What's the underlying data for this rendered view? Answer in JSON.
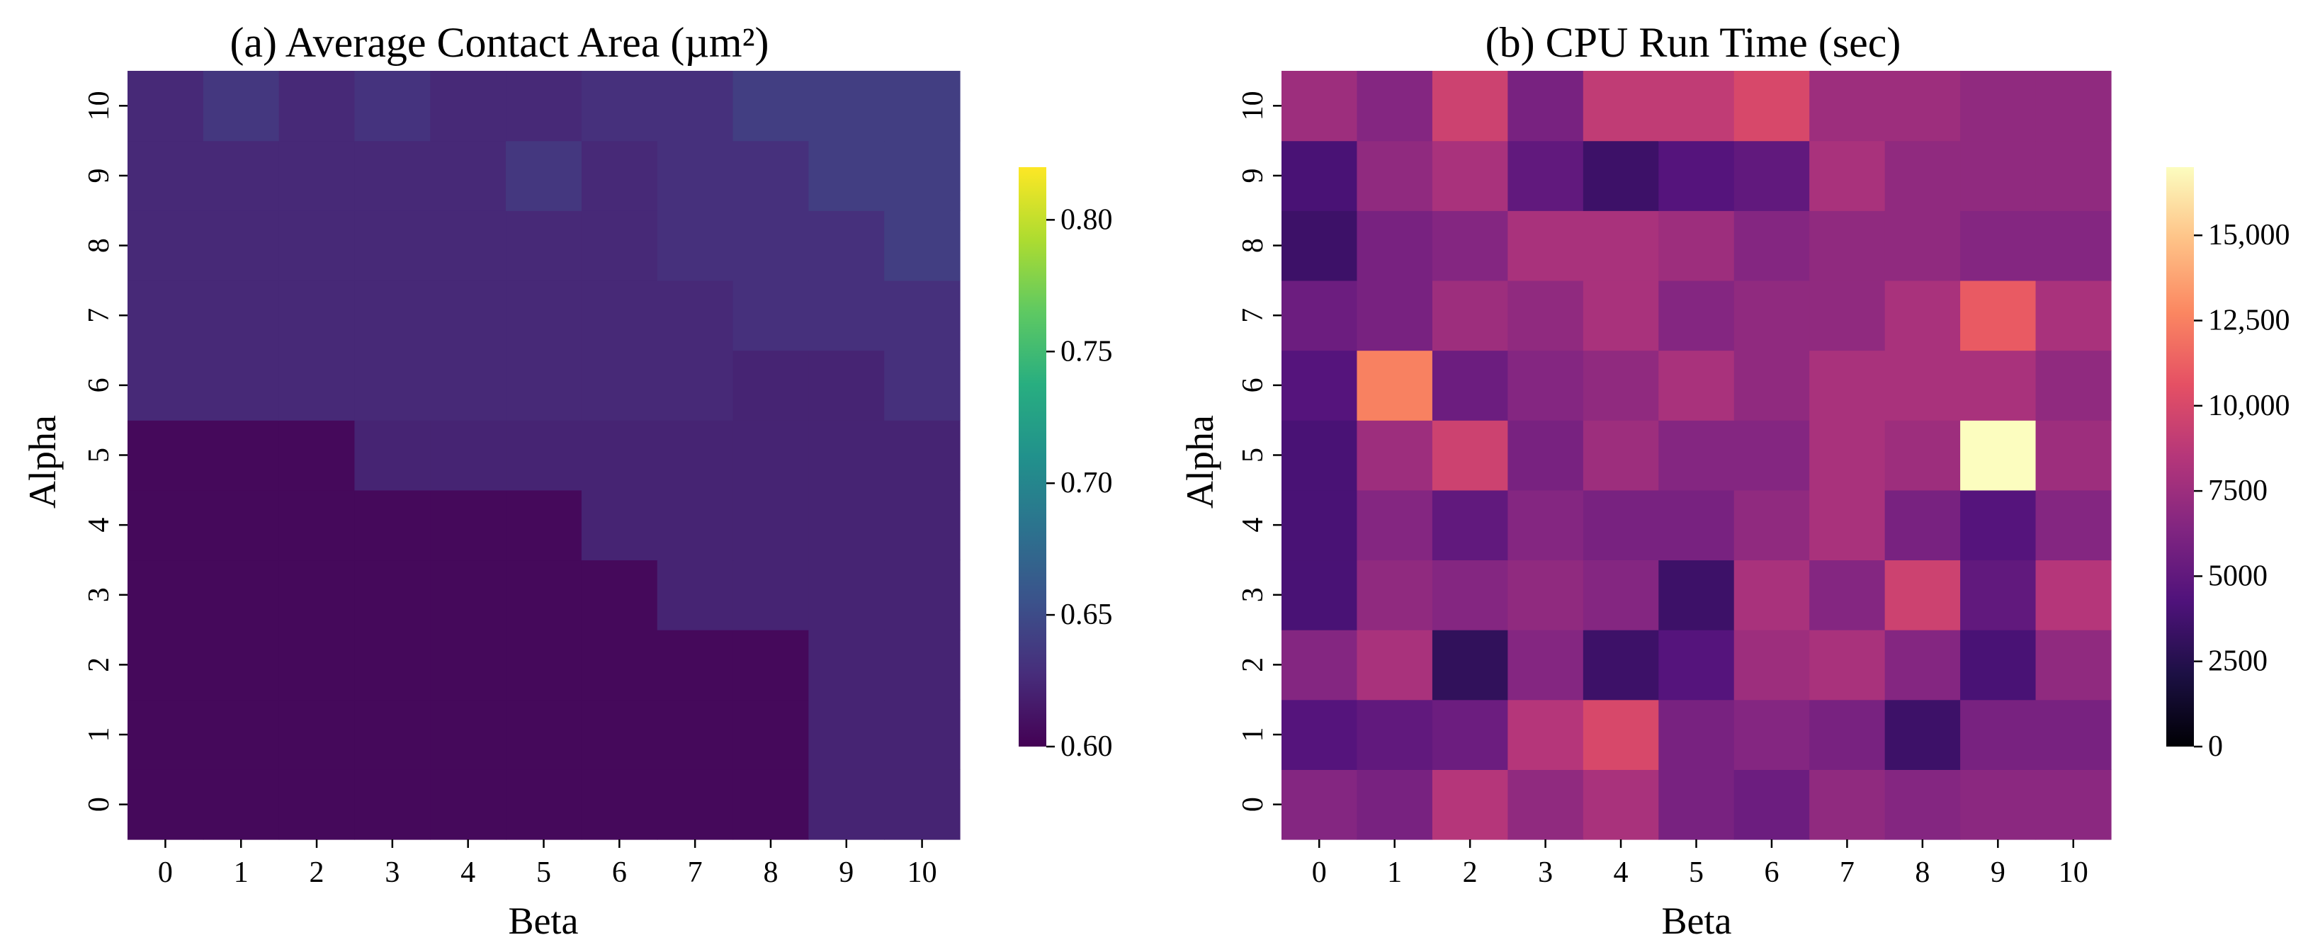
{
  "chart_data": [
    {
      "type": "heatmap",
      "title": "(a) Average Contact Area (µm²)",
      "xlabel": "Beta",
      "ylabel": "Alpha",
      "x_categories": [
        "0",
        "1",
        "2",
        "3",
        "4",
        "5",
        "6",
        "7",
        "8",
        "9",
        "10"
      ],
      "y_categories": [
        "0",
        "1",
        "2",
        "3",
        "4",
        "5",
        "6",
        "7",
        "8",
        "9",
        "10"
      ],
      "colormap": "viridis",
      "vmin": 0.6,
      "vmax": 0.82,
      "colorbar_ticks": [
        "0.60",
        "0.65",
        "0.70",
        "0.75",
        "0.80"
      ],
      "colorbar_tick_values": [
        0.6,
        0.65,
        0.7,
        0.75,
        0.8
      ],
      "values": [
        [
          0.605,
          0.605,
          0.605,
          0.605,
          0.605,
          0.605,
          0.605,
          0.605,
          0.605,
          0.622,
          0.622
        ],
        [
          0.605,
          0.605,
          0.605,
          0.605,
          0.605,
          0.605,
          0.605,
          0.605,
          0.605,
          0.622,
          0.622
        ],
        [
          0.605,
          0.605,
          0.605,
          0.605,
          0.605,
          0.605,
          0.605,
          0.605,
          0.605,
          0.622,
          0.622
        ],
        [
          0.605,
          0.605,
          0.605,
          0.605,
          0.605,
          0.605,
          0.605,
          0.622,
          0.622,
          0.622,
          0.622
        ],
        [
          0.605,
          0.605,
          0.605,
          0.605,
          0.605,
          0.605,
          0.622,
          0.622,
          0.622,
          0.622,
          0.622
        ],
        [
          0.605,
          0.605,
          0.605,
          0.622,
          0.622,
          0.622,
          0.622,
          0.622,
          0.622,
          0.622,
          0.622
        ],
        [
          0.625,
          0.625,
          0.625,
          0.625,
          0.625,
          0.625,
          0.625,
          0.625,
          0.622,
          0.622,
          0.63
        ],
        [
          0.625,
          0.625,
          0.625,
          0.625,
          0.625,
          0.625,
          0.625,
          0.625,
          0.63,
          0.63,
          0.63
        ],
        [
          0.625,
          0.625,
          0.625,
          0.625,
          0.625,
          0.625,
          0.625,
          0.63,
          0.63,
          0.63,
          0.64
        ],
        [
          0.625,
          0.625,
          0.625,
          0.625,
          0.625,
          0.635,
          0.625,
          0.63,
          0.63,
          0.64,
          0.64
        ],
        [
          0.625,
          0.635,
          0.625,
          0.632,
          0.625,
          0.625,
          0.63,
          0.63,
          0.64,
          0.64,
          0.64
        ]
      ]
    },
    {
      "type": "heatmap",
      "title": "(b) CPU Run Time (sec)",
      "xlabel": "Beta",
      "ylabel": "Alpha",
      "x_categories": [
        "0",
        "1",
        "2",
        "3",
        "4",
        "5",
        "6",
        "7",
        "8",
        "9",
        "10"
      ],
      "y_categories": [
        "0",
        "1",
        "2",
        "3",
        "4",
        "5",
        "6",
        "7",
        "8",
        "9",
        "10"
      ],
      "colormap": "magma",
      "vmin": 0,
      "vmax": 17000,
      "colorbar_ticks": [
        "0",
        "2500",
        "5000",
        "7500",
        "10,000",
        "12,500",
        "15,000"
      ],
      "colorbar_tick_values": [
        0,
        2500,
        5000,
        7500,
        10000,
        12500,
        15000
      ],
      "values": [
        [
          6500,
          6000,
          8500,
          7000,
          8000,
          6000,
          5500,
          7000,
          6500,
          6800,
          6800
        ],
        [
          4500,
          5000,
          5500,
          8500,
          10000,
          6000,
          6500,
          6000,
          3500,
          6000,
          6000
        ],
        [
          6500,
          8000,
          3000,
          6500,
          3500,
          4500,
          7500,
          8000,
          6500,
          4000,
          7000
        ],
        [
          4000,
          7000,
          6500,
          7000,
          6500,
          3500,
          8000,
          6500,
          9500,
          5000,
          8500
        ],
        [
          4000,
          6500,
          5000,
          6500,
          6000,
          6000,
          7000,
          8000,
          6000,
          4500,
          6500
        ],
        [
          4000,
          7500,
          9500,
          6000,
          7500,
          6500,
          6500,
          8000,
          7500,
          17000,
          7500
        ],
        [
          4500,
          12500,
          5500,
          6500,
          7000,
          8000,
          7000,
          8000,
          8000,
          8000,
          7000
        ],
        [
          5500,
          6000,
          7500,
          7000,
          8000,
          6500,
          7000,
          7000,
          8000,
          11000,
          8000
        ],
        [
          3500,
          6000,
          6500,
          8000,
          8000,
          7500,
          6500,
          7000,
          7000,
          6500,
          6500
        ],
        [
          4000,
          7000,
          8000,
          5000,
          3500,
          4500,
          5000,
          8000,
          7000,
          7000,
          7000
        ],
        [
          7500,
          6500,
          9500,
          6000,
          9000,
          9000,
          10000,
          7500,
          7500,
          7000,
          7000
        ]
      ]
    }
  ]
}
